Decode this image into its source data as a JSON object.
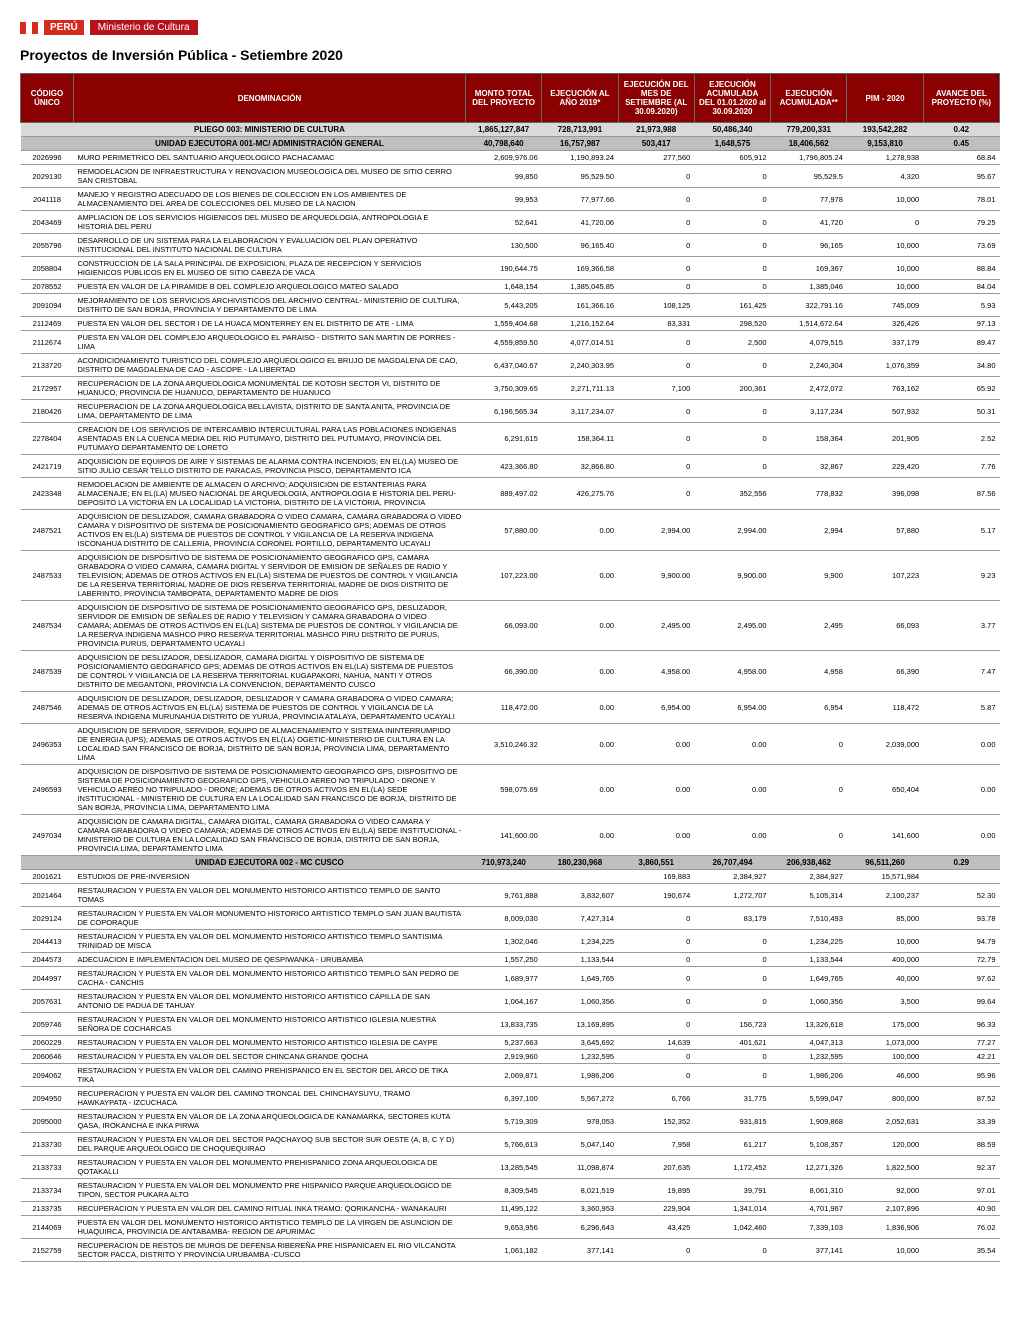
{
  "header": {
    "peru": "PERÚ",
    "ministry": "Ministerio de Cultura"
  },
  "title": "Proyectos de Inversión Pública - Setiembre 2020",
  "columns": [
    "CÓDIGO ÚNICO",
    "DENOMINACIÓN",
    "MONTO TOTAL DEL PROYECTO",
    "EJECUCIÓN AL AÑO 2019*",
    "EJECUCIÓN DEL MES DE SETIEMBRE (AL 30.09.2020)",
    "EJECUCIÓN ACUMULADA DEL 01.01.2020 al 30.09.2020",
    "EJECUCIÓN ACUMULADA**",
    "PIM - 2020",
    "AVANCE DEL PROYECTO (%)"
  ],
  "rows": [
    {
      "t": "pliego",
      "code": "",
      "denom": "PLIEGO 003: MINISTERIO DE CULTURA",
      "v": [
        "1,865,127,847",
        "728,713,991",
        "21,973,988",
        "50,486,340",
        "779,200,331",
        "193,542,282",
        "0.42"
      ]
    },
    {
      "t": "section",
      "code": "",
      "denom": "UNIDAD EJECUTORA 001-MC/ ADMINISTRACIÓN GENERAL",
      "v": [
        "40,798,640",
        "16,757,987",
        "503,417",
        "1,648,575",
        "18,406,562",
        "9,153,810",
        "0.45"
      ]
    },
    {
      "code": "2026996",
      "denom": "MURO PERIMETRICO DEL SANTUARIO ARQUEOLOGICO PACHACAMAC",
      "v": [
        "2,609,976.06",
        "1,190,893.24",
        "277,560",
        "605,912",
        "1,796,805.24",
        "1,278,938",
        "68.84"
      ]
    },
    {
      "code": "2029130",
      "denom": "REMODELACION DE INFRAESTRUCTURA Y RENOVACION MUSEOLOGICA DEL MUSEO DE SITIO CERRO SAN CRISTOBAL",
      "v": [
        "99,850",
        "95,529.50",
        "0",
        "0",
        "95,529.5",
        "4,320",
        "95.67"
      ]
    },
    {
      "code": "2041118",
      "denom": "MANEJO Y REGISTRO ADECUADO DE LOS BIENES DE COLECCION EN LOS AMBIENTES DE ALMACENAMIENTO DEL AREA DE COLECCIONES DEL MUSEO DE LA NACION",
      "v": [
        "99,953",
        "77,977.66",
        "0",
        "0",
        "77,978",
        "10,000",
        "78.01"
      ]
    },
    {
      "code": "2043469",
      "denom": "AMPLIACION DE LOS SERVICIOS HIGIENICOS DEL MUSEO DE ARQUEOLOGIA, ANTROPOLOGIA E HISTORIA DEL PERU",
      "v": [
        "52,641",
        "41,720.06",
        "0",
        "0",
        "41,720",
        "0",
        "79.25"
      ]
    },
    {
      "code": "2055796",
      "denom": "DESARROLLO DE UN SISTEMA PARA LA ELABORACION Y EVALUACION DEL PLAN OPERATIVO INSTITUCIONAL DEL INSTITUTO NACIONAL DE CULTURA",
      "v": [
        "130,500",
        "96,165.40",
        "0",
        "0",
        "96,165",
        "10,000",
        "73.69"
      ]
    },
    {
      "code": "2058804",
      "denom": "CONSTRUCCION DE LA SALA PRINCIPAL DE EXPOSICION, PLAZA DE RECEPCION Y SERVICIOS HIGIENICOS PUBLICOS EN EL MUSEO DE SITIO CABEZA DE VACA",
      "v": [
        "190,644.75",
        "169,366.58",
        "0",
        "0",
        "169,367",
        "10,000",
        "88.84"
      ]
    },
    {
      "code": "2078552",
      "denom": "PUESTA EN VALOR DE LA PIRAMIDE B DEL COMPLEJO ARQUEOLOGICO MATEO SALADO",
      "v": [
        "1,648,154",
        "1,385,045.85",
        "0",
        "0",
        "1,385,046",
        "10,000",
        "84.04"
      ]
    },
    {
      "code": "2091094",
      "denom": "MEJORAMIENTO DE LOS SERVICIOS ARCHIVISTICOS DEL ARCHIVO CENTRAL- MINISTERIO DE CULTURA, DISTRITO DE SAN BORJA, PROVINCIA Y DEPARTAMENTO DE LIMA",
      "v": [
        "5,443,205",
        "161,366.16",
        "108,125",
        "161,425",
        "322,791.16",
        "745,009",
        "5.93"
      ]
    },
    {
      "code": "2112469",
      "denom": "PUESTA EN VALOR DEL SECTOR I DE LA HUACA MONTERREY EN EL DISTRITO DE ATE - LIMA",
      "v": [
        "1,559,404.68",
        "1,216,152.64",
        "83,331",
        "298,520",
        "1,514,672.64",
        "326,426",
        "97.13"
      ]
    },
    {
      "code": "2112674",
      "denom": "PUESTA EN VALOR DEL COMPLEJO ARQUEOLOGICO EL PARAISO - DISTRITO SAN MARTIN DE PORRES - LIMA",
      "v": [
        "4,559,859.50",
        "4,077,014.51",
        "0",
        "2,500",
        "4,079,515",
        "337,179",
        "89.47"
      ]
    },
    {
      "code": "2133720",
      "denom": "ACONDICIONAMIENTO TURISTICO DEL COMPLEJO ARQUEOLOGICO EL BRUJO DE MAGDALENA DE CAO, DISTRITO DE MAGDALENA DE CAO - ASCOPE - LA LIBERTAD",
      "v": [
        "6,437,040.67",
        "2,240,303.95",
        "0",
        "0",
        "2,240,304",
        "1,076,359",
        "34.80"
      ]
    },
    {
      "code": "2172957",
      "denom": "RECUPERACION DE LA ZONA ARQUEOLOGICA MONUMENTAL DE KOTOSH SECTOR VI, DISTRITO DE HUANUCO, PROVINCIA DE HUANUCO, DEPARTAMENTO DE HUANUCO",
      "v": [
        "3,750,309.65",
        "2,271,711.13",
        "7,100",
        "200,361",
        "2,472,072",
        "763,162",
        "65.92"
      ]
    },
    {
      "code": "2180426",
      "denom": "RECUPERACION DE LA ZONA ARQUEOLOGICA BELLAVISTA, DISTRITO DE SANTA ANITA, PROVINCIA DE LIMA, DEPARTAMENTO DE LIMA",
      "v": [
        "6,196,565.34",
        "3,117,234.07",
        "0",
        "0",
        "3,117,234",
        "507,932",
        "50.31"
      ]
    },
    {
      "code": "2278404",
      "denom": "CREACION DE LOS SERVICIOS DE INTERCAMBIO INTERCULTURAL PARA LAS POBLACIONES INDIGENAS ASENTADAS EN LA CUENCA MEDIA DEL RIO PUTUMAYO, DISTRITO DEL PUTUMAYO, PROVINCIA DEL PUTUMAYO DEPARTAMENTO DE LORETO",
      "v": [
        "6,291,615",
        "158,364.11",
        "0",
        "0",
        "158,364",
        "201,905",
        "2.52"
      ]
    },
    {
      "code": "2421719",
      "denom": "ADQUISICION DE EQUIPOS DE AIRE Y SISTEMAS DE ALARMA CONTRA INCENDIOS; EN EL(LA) MUSEO DE SITIO JULIO CESAR TELLO DISTRITO DE PARACAS, PROVINCIA PISCO, DEPARTAMENTO ICA",
      "v": [
        "423,366.80",
        "32,866.80",
        "0",
        "0",
        "32,867",
        "229,420",
        "7.76"
      ]
    },
    {
      "code": "2423348",
      "denom": "REMODELACION DE AMBIENTE DE ALMACEN O ARCHIVO; ADQUISICION DE ESTANTERIAS PARA ALMACENAJE; EN EL(LA) MUSEO NACIONAL DE ARQUEOLOGIA, ANTROPOLOGIA E HISTORIA DEL PERU-DEPOSITO LA VICTORIA EN LA LOCALIDAD LA VICTORIA, DISTRITO DE LA VICTORIA, PROVINCIA",
      "v": [
        "889,497.02",
        "426,275.76",
        "0",
        "352,556",
        "778,832",
        "396,098",
        "87.56"
      ]
    },
    {
      "code": "2487521",
      "denom": "ADQUISICION DE DESLIZADOR, CAMARA GRABADORA O VIDEO CAMARA, CAMARA GRABADORA O VIDEO CAMARA Y DISPOSITIVO DE SISTEMA DE POSICIONAMIENTO GEOGRAFICO GPS; ADEMAS DE OTROS ACTIVOS EN EL(LA) SISTEMA DE PUESTOS DE CONTROL Y VIGILANCIA DE LA RESERVA INDIGENA ISCONAHUA DISTRITO DE CALLERIA, PROVINCIA CORONEL PORTILLO, DEPARTAMENTO UCAYALI",
      "v": [
        "57,880.00",
        "0.00",
        "2,994.00",
        "2,994.00",
        "2,994",
        "57,880",
        "5.17"
      ]
    },
    {
      "code": "2487533",
      "denom": "ADQUISICION DE DISPOSITIVO DE SISTEMA DE POSICIONAMIENTO GEOGRAFICO GPS, CAMARA GRABADORA O VIDEO CAMARA, CAMARA DIGITAL Y SERVIDOR DE EMISION DE SEÑALES DE RADIO Y TELEVISION; ADEMAS DE OTROS ACTIVOS EN EL(LA) SISTEMA DE PUESTOS DE CONTROL Y VIGILANCIA DE LA RESERVA TERRITORIAL MADRE DE DIOS RESERVA TERRITORIAL MADRE DE DIOS DISTRITO DE LABERINTO, PROVINCIA TAMBOPATA, DEPARTAMENTO MADRE DE DIOS",
      "v": [
        "107,223.00",
        "0.00",
        "9,900.00",
        "9,900.00",
        "9,900",
        "107,223",
        "9.23"
      ]
    },
    {
      "code": "2487534",
      "denom": "ADQUISICION DE DISPOSITIVO DE SISTEMA DE POSICIONAMIENTO GEOGRAFICO GPS, DESLIZADOR, SERVIDOR DE EMISION DE SEÑALES DE RADIO Y TELEVISION Y CAMARA GRABADORA O VIDEO CAMARA; ADEMAS DE OTROS ACTIVOS EN EL(LA) SISTEMA DE PUESTOS DE CONTROL Y VIGILANCIA DE LA RESERVA INDIGENA MASHCO PIRO RESERVA TERRITORIAL MASHCO PIRU DISTRITO DE PURUS, PROVINCIA PURUS, DEPARTAMENTO UCAYALI",
      "v": [
        "66,093.00",
        "0.00",
        "2,495.00",
        "2,495.00",
        "2,495",
        "66,093",
        "3.77"
      ]
    },
    {
      "code": "2487539",
      "denom": "ADQUISICION DE DESLIZADOR, DESLIZADOR, CAMARA DIGITAL Y DISPOSITIVO DE SISTEMA DE POSICIONAMIENTO GEOGRAFICO GPS; ADEMAS DE OTROS ACTIVOS EN EL(LA) SISTEMA DE PUESTOS DE CONTROL Y VIGILANCIA DE LA RESERVA TERRITORIAL KUGAPAKORI, NAHUA, NANTI Y OTROS DISTRITO DE MEGANTONI, PROVINCIA LA CONVENCION, DEPARTAMENTO CUSCO",
      "v": [
        "66,390.00",
        "0.00",
        "4,958.00",
        "4,958.00",
        "4,958",
        "66,390",
        "7.47"
      ]
    },
    {
      "code": "2487546",
      "denom": "ADQUISICION DE DESLIZADOR, DESLIZADOR, DESLIZADOR Y CAMARA GRABADORA O VIDEO CAMARA; ADEMAS DE OTROS ACTIVOS EN EL(LA) SISTEMA DE PUESTOS DE CONTROL Y VIGILANCIA DE LA RESERVA INDIGENA MURUNAHUA DISTRITO DE YURUA, PROVINCIA ATALAYA, DEPARTAMENTO UCAYALI",
      "v": [
        "118,472.00",
        "0.00",
        "6,954.00",
        "6,954.00",
        "6,954",
        "118,472",
        "5.87"
      ]
    },
    {
      "code": "2496353",
      "denom": "ADQUISICION DE SERVIDOR, SERVIDOR, EQUIPO DE ALMACENAMIENTO Y SISTEMA ININTERRUMPIDO DE ENERGIA (UPS); ADEMAS DE OTROS ACTIVOS EN EL(LA) OGETIC-MINISTERIO DE CULTURA EN LA LOCALIDAD SAN FRANCISCO DE BORJA, DISTRITO DE SAN BORJA, PROVINCIA LIMA, DEPARTAMENTO LIMA",
      "v": [
        "3,510,246.32",
        "0.00",
        "0.00",
        "0.00",
        "0",
        "2,039,000",
        "0.00"
      ]
    },
    {
      "code": "2496593",
      "denom": "ADQUISICION DE DISPOSITIVO DE SISTEMA DE POSICIONAMIENTO GEOGRAFICO GPS, DISPOSITIVO DE SISTEMA DE POSICIONAMIENTO GEOGRAFICO GPS, VEHICULO AEREO NO TRIPULADO - DRONE Y VEHICULO AEREO NO TRIPULADO - DRONE; ADEMAS DE OTROS ACTIVOS EN EL(LA) SEDE INSTITUCIONAL - MINISTERIO DE CULTURA EN LA LOCALIDAD SAN FRANCISCO DE BORJA, DISTRITO DE SAN BORJA, PROVINCIA LIMA, DEPARTAMENTO LIMA",
      "v": [
        "598,075.69",
        "0.00",
        "0.00",
        "0.00",
        "0",
        "650,404",
        "0.00"
      ]
    },
    {
      "code": "2497034",
      "denom": "ADQUISICION DE CAMARA DIGITAL, CAMARA DIGITAL, CAMARA GRABADORA O VIDEO CAMARA Y CAMARA GRABADORA O VIDEO CAMARA; ADEMAS DE OTROS ACTIVOS EN EL(LA) SEDE INSTITUCIONAL - MINISTERIO DE CULTURA EN LA LOCALIDAD SAN FRANCISCO DE BORJA, DISTRITO DE SAN BORJA, PROVINCIA LIMA, DEPARTAMENTO LIMA",
      "v": [
        "141,600.00",
        "0.00",
        "0.00",
        "0.00",
        "0",
        "141,600",
        "0.00"
      ]
    },
    {
      "t": "section",
      "code": "",
      "denom": "UNIDAD EJECUTORA 002 - MC CUSCO",
      "v": [
        "710,973,240",
        "180,230,968",
        "3,860,551",
        "26,707,494",
        "206,938,462",
        "96,511,260",
        "0.29"
      ]
    },
    {
      "code": "2001621",
      "denom": "ESTUDIOS DE PRE-INVERSION",
      "v": [
        "",
        "",
        "169,883",
        "2,384,927",
        "2,384,927",
        "15,571,984",
        ""
      ]
    },
    {
      "code": "2021464",
      "denom": "RESTAURACION Y PUESTA EN VALOR DEL MONUMENTO HISTORICO ARTISTICO TEMPLO DE SANTO TOMAS",
      "v": [
        "9,761,888",
        "3,832,607",
        "190,674",
        "1,272,707",
        "5,105,314",
        "2,100,237",
        "52.30"
      ]
    },
    {
      "code": "2029124",
      "denom": "RESTAURACION Y PUESTA EN VALOR MONUMENTO HISTORICO ARTISTICO TEMPLO SAN JUAN BAUTISTA DE COPORAQUE",
      "v": [
        "8,009,030",
        "7,427,314",
        "0",
        "83,179",
        "7,510,493",
        "85,000",
        "93.78"
      ]
    },
    {
      "code": "2044413",
      "denom": "RESTAURACION Y PUESTA EN VALOR DEL MONUMENTO HISTORICO ARTISTICO TEMPLO SANTISIMA TRINIDAD DE MISCA",
      "v": [
        "1,302,046",
        "1,234,225",
        "0",
        "0",
        "1,234,225",
        "10,000",
        "94.79"
      ]
    },
    {
      "code": "2044573",
      "denom": "ADECUACION E IMPLEMENTACION DEL MUSEO DE QESPIWANKA - URUBAMBA",
      "v": [
        "1,557,250",
        "1,133,544",
        "0",
        "0",
        "1,133,544",
        "400,000",
        "72.79"
      ]
    },
    {
      "code": "2044997",
      "denom": "RESTAURACION Y PUESTA EN VALOR DEL MONUMENTO HISTORICO ARTISTICO TEMPLO SAN PEDRO DE CACHA - CANCHIS",
      "v": [
        "1,689,977",
        "1,649,765",
        "0",
        "0",
        "1,649,765",
        "40,000",
        "97.62"
      ]
    },
    {
      "code": "2057631",
      "denom": "RESTAURACION Y PUESTA EN VALOR DEL MONUMENTO HISTORICO ARTISTICO CAPILLA DE SAN ANTONIO DE PADUA DE TAHUAY",
      "v": [
        "1,064,167",
        "1,060,356",
        "0",
        "0",
        "1,060,356",
        "3,500",
        "99.64"
      ]
    },
    {
      "code": "2059746",
      "denom": "RESTAURACION Y PUESTA EN VALOR DEL MONUMENTO HISTORICO ARTISTICO IGLESIA NUESTRA SEÑORA DE COCHARCAS",
      "v": [
        "13,833,735",
        "13,169,895",
        "0",
        "156,723",
        "13,326,618",
        "175,000",
        "96.33"
      ]
    },
    {
      "code": "2060229",
      "denom": "RESTAURACION Y PUESTA EN VALOR DEL MONUMENTO HISTORICO ARTISTICO IGLESIA DE CAYPE",
      "v": [
        "5,237,663",
        "3,645,692",
        "14,639",
        "401,621",
        "4,047,313",
        "1,073,000",
        "77.27"
      ]
    },
    {
      "code": "2060646",
      "denom": "RESTAURACION Y PUESTA EN VALOR DEL SECTOR CHINCANA GRANDE QOCHA",
      "v": [
        "2,919,960",
        "1,232,595",
        "0",
        "0",
        "1,232,595",
        "100,000",
        "42.21"
      ]
    },
    {
      "code": "2094062",
      "denom": "RESTAURACION Y PUESTA EN VALOR DEL CAMINO PREHISPANICO EN EL SECTOR DEL ARCO DE TIKA TIKA",
      "v": [
        "2,069,871",
        "1,986,206",
        "0",
        "0",
        "1,986,206",
        "46,000",
        "95.96"
      ]
    },
    {
      "code": "2094950",
      "denom": "RECUPERACION Y PUESTA EN VALOR DEL CAMINO TRONCAL DEL CHINCHAYSUYU, TRAMO HAWKAYPATA - IZCUCHACA",
      "v": [
        "6,397,100",
        "5,567,272",
        "6,766",
        "31,775",
        "5,599,047",
        "800,000",
        "87.52"
      ]
    },
    {
      "code": "2095000",
      "denom": "RESTAURACION Y PUESTA EN VALOR DE LA ZONA ARQUEOLOGICA DE KANAMARKA, SECTORES KUTA QASA, IROKANCHA E INKA PIRWA",
      "v": [
        "5,719,309",
        "978,053",
        "152,352",
        "931,815",
        "1,909,868",
        "2,052,631",
        "33.39"
      ]
    },
    {
      "code": "2133730",
      "denom": "RESTAURACION Y PUESTA EN VALOR DEL SECTOR PAQCHAYOQ SUB SECTOR SUR OESTE (A, B, C Y D) DEL PARQUE ARQUEOLOGICO DE CHOQUEQUIRAO",
      "v": [
        "5,766,613",
        "5,047,140",
        "7,958",
        "61,217",
        "5,108,357",
        "120,000",
        "88.59"
      ]
    },
    {
      "code": "2133733",
      "denom": "RESTAURACION Y PUESTA EN VALOR DEL MONUMENTO PREHISPANICO ZONA ARQUEOLOGICA DE QOTAKALLI",
      "v": [
        "13,285,545",
        "11,098,874",
        "207,635",
        "1,172,452",
        "12,271,326",
        "1,822,500",
        "92.37"
      ]
    },
    {
      "code": "2133734",
      "denom": "RESTAURACION Y PUESTA EN VALOR DEL MONUMENTO PRE HISPANICO PARQUE ARQUEOLOGICO DE TIPON, SECTOR PUKARA ALTO",
      "v": [
        "8,309,545",
        "8,021,519",
        "19,895",
        "39,791",
        "8,061,310",
        "92,000",
        "97.01"
      ]
    },
    {
      "code": "2133735",
      "denom": "RECUPERACION Y PUESTA EN VALOR DEL CAMINO RITUAL INKA TRAMO: QORIKANCHA - WANAKAURI",
      "v": [
        "11,495,122",
        "3,360,953",
        "229,904",
        "1,341,014",
        "4,701,967",
        "2,107,896",
        "40.90"
      ]
    },
    {
      "code": "2144069",
      "denom": "PUESTA EN VALOR DEL MONUMENTO HISTORICO ARTISTICO TEMPLO DE LA VIRGEN DE ASUNCION DE HUAQUIRCA, PROVINCIA DE ANTABAMBA- REGION DE APURIMAC",
      "v": [
        "9,653,956",
        "6,296,643",
        "43,425",
        "1,042,460",
        "7,339,103",
        "1,836,906",
        "76.02"
      ]
    },
    {
      "code": "2152759",
      "denom": "RECUPERACION DE RESTOS DE MUROS DE DEFENSA RIBEREÑA PRE HISPANICAEN EL RIO VILCANOTA SECTOR PACCA, DISTRITO Y PROVINCIA URUBAMBA -CUSCO",
      "v": [
        "1,061,182",
        "377,141",
        "0",
        "0",
        "377,141",
        "10,000",
        "35.54"
      ]
    }
  ]
}
